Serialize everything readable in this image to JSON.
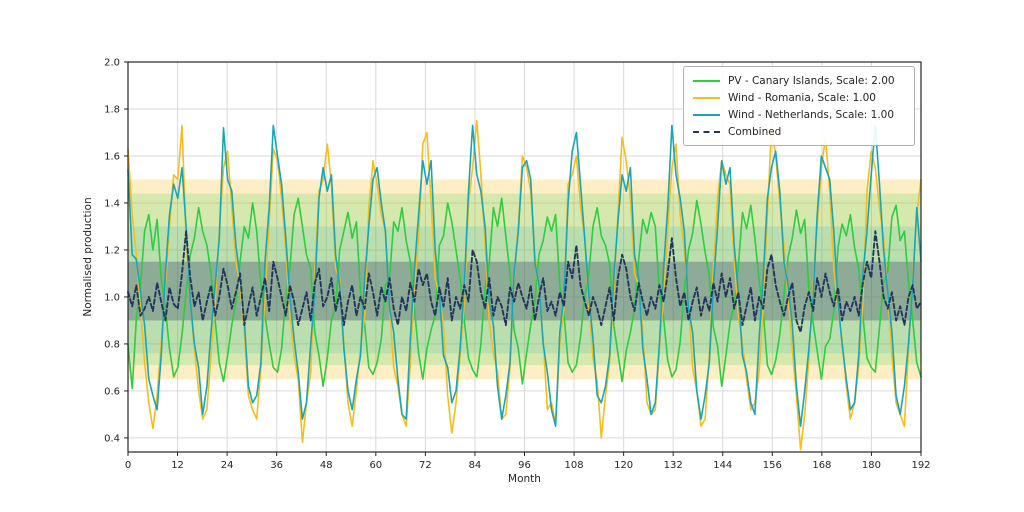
{
  "chart_data": {
    "type": "line",
    "title": "",
    "xlabel": "Month",
    "ylabel": "Normalised production",
    "xlim": [
      0,
      192
    ],
    "ylim": [
      0.34,
      2.0
    ],
    "x_ticks": [
      0,
      12,
      24,
      36,
      48,
      60,
      72,
      84,
      96,
      108,
      120,
      132,
      144,
      156,
      168,
      180,
      192
    ],
    "y_ticks": [
      0.4,
      0.6,
      0.8,
      1.0,
      1.2,
      1.4,
      1.6,
      1.8,
      2.0
    ],
    "grid": true,
    "legend_position": "upper-right",
    "series": [
      {
        "id": "pv-canary-islands",
        "name": "PV - Canary Islands, Scale: 2.00",
        "color": "#2ecc40",
        "style": "solid",
        "values": [
          0.8,
          0.61,
          0.9,
          1.05,
          1.28,
          1.35,
          1.2,
          1.33,
          1.08,
          0.95,
          0.78,
          0.66,
          0.7,
          0.84,
          1.02,
          1.18,
          1.25,
          1.38,
          1.28,
          1.22,
          1.1,
          0.9,
          0.72,
          0.64,
          0.75,
          0.88,
          0.98,
          1.15,
          1.3,
          1.25,
          1.4,
          1.28,
          1.05,
          0.92,
          0.8,
          0.7,
          0.68,
          0.78,
          1.0,
          1.12,
          1.35,
          1.42,
          1.3,
          1.18,
          1.12,
          0.85,
          0.75,
          0.62,
          0.74,
          0.9,
          0.96,
          1.2,
          1.28,
          1.36,
          1.25,
          1.32,
          1.02,
          0.88,
          0.7,
          0.67,
          0.72,
          0.82,
          1.05,
          1.08,
          1.32,
          1.28,
          1.38,
          1.24,
          1.15,
          0.95,
          0.76,
          0.65,
          0.78,
          0.86,
          0.92,
          1.22,
          1.26,
          1.4,
          1.32,
          1.2,
          1.08,
          0.9,
          0.74,
          0.69,
          0.66,
          0.8,
          1.04,
          1.14,
          1.38,
          1.3,
          1.42,
          1.26,
          1.1,
          0.86,
          0.78,
          0.63,
          0.76,
          0.88,
          0.98,
          1.18,
          1.24,
          1.34,
          1.28,
          1.35,
          1.05,
          0.93,
          0.72,
          0.68,
          0.71,
          0.83,
          1.0,
          1.1,
          1.3,
          1.38,
          1.26,
          1.22,
          1.14,
          0.88,
          0.76,
          0.64,
          0.77,
          0.85,
          0.95,
          1.16,
          1.33,
          1.27,
          1.36,
          1.3,
          1.02,
          0.91,
          0.73,
          0.66,
          0.69,
          0.81,
          1.03,
          1.2,
          1.27,
          1.41,
          1.31,
          1.19,
          1.09,
          0.87,
          0.79,
          0.62,
          0.75,
          0.89,
          0.97,
          1.13,
          1.36,
          1.29,
          1.39,
          1.25,
          1.07,
          0.94,
          0.71,
          0.67,
          0.73,
          0.84,
          1.01,
          1.17,
          1.25,
          1.37,
          1.27,
          1.33,
          1.03,
          0.89,
          0.77,
          0.65,
          0.79,
          0.82,
          0.94,
          1.21,
          1.31,
          1.26,
          1.35,
          1.21,
          1.12,
          0.92,
          0.74,
          0.7,
          0.68,
          0.87,
          1.06,
          1.11,
          1.34,
          1.39,
          1.24,
          1.28,
          1.06,
          0.9,
          0.72,
          0.66
        ]
      },
      {
        "id": "wind-romania",
        "name": "Wind - Romania, Scale: 1.00",
        "color": "#f6bd1d",
        "style": "solid",
        "values": [
          1.63,
          1.35,
          1.18,
          0.95,
          0.72,
          0.55,
          0.44,
          0.58,
          0.8,
          1.05,
          1.3,
          1.52,
          1.5,
          1.73,
          1.25,
          0.98,
          0.78,
          0.6,
          0.48,
          0.52,
          0.75,
          0.98,
          1.28,
          1.55,
          1.62,
          1.38,
          1.15,
          1.05,
          0.85,
          0.58,
          0.52,
          0.48,
          0.7,
          1.0,
          1.32,
          1.63,
          1.58,
          1.42,
          1.2,
          0.92,
          0.75,
          0.65,
          0.38,
          0.55,
          0.68,
          1.1,
          1.45,
          1.5,
          1.65,
          1.48,
          1.12,
          1.08,
          0.8,
          0.55,
          0.45,
          0.6,
          0.78,
          0.92,
          1.38,
          1.58,
          1.48,
          1.35,
          1.28,
          0.95,
          0.7,
          0.62,
          0.5,
          0.45,
          0.72,
          1.05,
          1.25,
          1.65,
          1.7,
          1.4,
          1.08,
          1.0,
          0.88,
          0.58,
          0.42,
          0.55,
          0.75,
          0.98,
          1.4,
          1.55,
          1.75,
          1.52,
          1.22,
          0.9,
          0.76,
          0.68,
          0.48,
          0.5,
          0.7,
          1.08,
          1.3,
          1.6,
          1.55,
          1.45,
          1.18,
          1.02,
          0.82,
          0.52,
          0.55,
          0.46,
          0.8,
          0.95,
          1.48,
          1.52,
          1.6,
          1.38,
          1.25,
          0.96,
          0.74,
          0.64,
          0.4,
          0.58,
          0.72,
          1.02,
          1.35,
          1.68,
          1.58,
          1.42,
          1.1,
          1.05,
          0.85,
          0.55,
          0.5,
          0.52,
          0.78,
          1.0,
          1.28,
          1.55,
          1.65,
          1.35,
          1.2,
          0.98,
          0.7,
          0.6,
          0.45,
          0.48,
          0.75,
          1.12,
          1.42,
          1.58,
          1.52,
          1.48,
          1.15,
          0.92,
          0.8,
          0.65,
          0.52,
          0.55,
          0.68,
          0.95,
          1.35,
          1.72,
          1.6,
          1.4,
          1.22,
          1.0,
          0.78,
          0.58,
          0.35,
          0.5,
          0.74,
          1.05,
          1.3,
          1.55,
          1.68,
          1.45,
          1.12,
          0.95,
          0.82,
          0.62,
          0.48,
          0.55,
          0.7,
          0.98,
          1.45,
          1.62,
          1.55,
          1.38,
          1.25,
          1.02,
          0.75,
          0.55,
          0.5,
          0.45,
          0.78,
          1.08,
          1.35,
          1.5
        ]
      },
      {
        "id": "wind-netherlands",
        "name": "Wind - Netherlands, Scale: 1.00",
        "color": "#1aa5b5",
        "style": "solid",
        "values": [
          1.54,
          1.18,
          1.16,
          1.02,
          0.88,
          0.65,
          0.58,
          0.52,
          0.75,
          1.1,
          1.35,
          1.48,
          1.42,
          1.55,
          1.3,
          0.98,
          0.8,
          0.7,
          0.5,
          0.62,
          0.85,
          1.05,
          1.25,
          1.72,
          1.5,
          1.45,
          1.22,
          1.08,
          0.9,
          0.62,
          0.55,
          0.58,
          0.72,
          1.15,
          1.38,
          1.73,
          1.6,
          1.48,
          1.25,
          1.0,
          0.82,
          0.68,
          0.48,
          0.55,
          0.8,
          1.02,
          1.42,
          1.55,
          1.45,
          1.52,
          1.18,
          1.05,
          0.78,
          0.6,
          0.52,
          0.65,
          0.75,
          1.08,
          1.3,
          1.5,
          1.55,
          1.4,
          1.28,
          0.95,
          0.85,
          0.65,
          0.5,
          0.48,
          0.82,
          1.12,
          1.35,
          1.58,
          1.48,
          1.58,
          1.2,
          1.02,
          0.75,
          0.7,
          0.55,
          0.6,
          0.78,
          1.05,
          1.45,
          1.73,
          1.52,
          1.45,
          1.3,
          0.98,
          0.88,
          0.62,
          0.48,
          0.58,
          0.72,
          1.1,
          1.28,
          1.55,
          1.58,
          1.5,
          1.15,
          1.05,
          0.8,
          0.68,
          0.52,
          0.45,
          0.85,
          1.0,
          1.4,
          1.62,
          1.7,
          1.48,
          1.25,
          1.0,
          0.82,
          0.58,
          0.55,
          0.62,
          0.75,
          1.08,
          1.32,
          1.52,
          1.45,
          1.55,
          1.18,
          1.08,
          0.78,
          0.65,
          0.5,
          0.55,
          0.8,
          1.12,
          1.38,
          1.73,
          1.52,
          1.42,
          1.28,
          0.95,
          0.85,
          0.6,
          0.48,
          0.58,
          0.72,
          1.05,
          1.3,
          1.58,
          1.48,
          1.55,
          1.22,
          1.02,
          0.75,
          0.68,
          0.55,
          0.5,
          0.82,
          1.08,
          1.42,
          1.55,
          1.62,
          1.45,
          1.15,
          1.05,
          0.88,
          0.62,
          0.45,
          0.6,
          0.78,
          1.0,
          1.35,
          1.6,
          1.55,
          1.5,
          1.28,
          0.98,
          0.8,
          0.65,
          0.52,
          0.55,
          0.75,
          1.1,
          1.28,
          1.52,
          1.73,
          1.48,
          1.2,
          1.02,
          0.85,
          0.58,
          0.5,
          0.62,
          0.8,
          1.05,
          1.38,
          1.15
        ]
      },
      {
        "id": "combined",
        "name": "Combined",
        "color": "#24355c",
        "style": "dashed",
        "values": [
          1.02,
          0.96,
          1.05,
          0.92,
          0.95,
          1.0,
          0.94,
          1.06,
          0.98,
          0.9,
          1.04,
          0.97,
          0.95,
          1.1,
          1.28,
          1.08,
          0.96,
          1.02,
          0.9,
          0.98,
          1.05,
          0.92,
          1.0,
          1.12,
          1.05,
          0.95,
          1.02,
          1.1,
          0.88,
          0.96,
          1.04,
          0.92,
          1.0,
          1.08,
          0.94,
          1.15,
          1.08,
          1.0,
          0.92,
          1.05,
          0.98,
          0.88,
          0.95,
          1.02,
          0.9,
          1.06,
          1.12,
          0.96,
          1.0,
          1.08,
          0.94,
          1.02,
          0.88,
          0.98,
          1.05,
          0.92,
          1.0,
          0.95,
          1.1,
          1.02,
          0.92,
          1.04,
          0.98,
          1.08,
          0.95,
          0.88,
          1.0,
          0.94,
          1.06,
          0.98,
          1.12,
          1.05,
          1.1,
          0.98,
          0.92,
          1.04,
          0.96,
          1.08,
          0.9,
          1.0,
          0.95,
          1.05,
          0.98,
          1.2,
          1.15,
          1.02,
          0.95,
          1.08,
          0.92,
          1.0,
          0.96,
          0.88,
          1.04,
          0.98,
          1.06,
          1.0,
          0.95,
          1.05,
          0.9,
          1.0,
          1.08,
          0.94,
          0.98,
          0.92,
          1.02,
          0.96,
          1.15,
          1.08,
          1.22,
          1.05,
          0.98,
          0.92,
          1.0,
          0.95,
          0.88,
          0.96,
          1.04,
          0.9,
          1.08,
          1.18,
          1.12,
          1.0,
          0.94,
          1.06,
          0.98,
          0.92,
          1.0,
          0.95,
          1.05,
          0.98,
          1.1,
          1.25,
          1.08,
          0.96,
          1.02,
          0.9,
          0.98,
          1.04,
          0.92,
          1.0,
          0.94,
          1.06,
          0.98,
          1.1,
          1.0,
          1.08,
          0.95,
          1.02,
          0.88,
          0.96,
          1.04,
          0.9,
          1.0,
          0.95,
          1.12,
          1.18,
          1.05,
          0.98,
          0.92,
          1.0,
          1.06,
          0.9,
          0.85,
          0.96,
          1.02,
          0.94,
          1.08,
          1.0,
          1.1,
          1.02,
          0.96,
          1.04,
          0.9,
          0.98,
          0.94,
          1.0,
          0.92,
          1.06,
          1.15,
          1.08,
          1.28,
          1.15,
          1.0,
          0.95,
          1.02,
          0.9,
          0.96,
          0.88,
          1.0,
          1.05,
          0.95,
          0.98
        ]
      }
    ],
    "bands": [
      {
        "id": "band-wind-romania",
        "color": "#f6bd1d",
        "opacity": 0.25,
        "from": 0.65,
        "to": 1.5
      },
      {
        "id": "band-pv-canary-islands",
        "color": "#2ecc40",
        "opacity": 0.18,
        "from": 0.71,
        "to": 1.44
      },
      {
        "id": "band-wind-netherlands",
        "color": "#1aa5b5",
        "opacity": 0.15,
        "from": 0.76,
        "to": 1.3
      },
      {
        "id": "band-combined",
        "color": "#24355c",
        "opacity": 0.3,
        "from": 0.9,
        "to": 1.15
      }
    ],
    "style": {
      "grid_color": "#d9d9d9",
      "spine_color": "#262626",
      "text_color": "#262626",
      "background": "#ffffff"
    }
  }
}
